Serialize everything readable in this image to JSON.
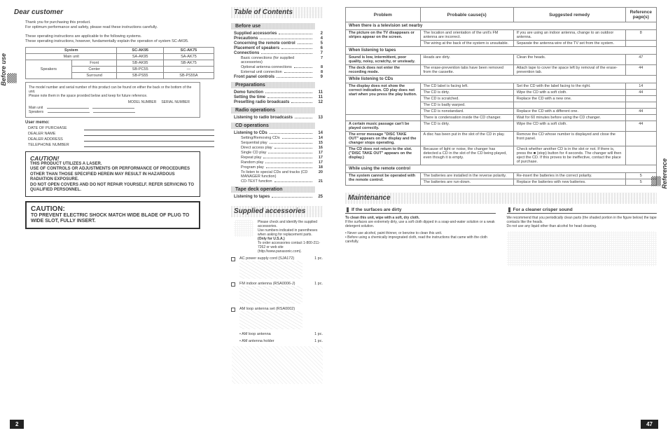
{
  "left_tab_label": "Before use",
  "right_tab_label": "Reference",
  "page_left_num": "2",
  "page_right_num": "47",
  "dear": {
    "title": "Dear customer",
    "p1": "Thank you for purchasing this product.",
    "p2": "For optimum performance and safety, please read these instructions carefully.",
    "p3": "These operating instructions are applicable to the following systems.",
    "p4": "These operating instructions, however, fundamentally explain the operation of system SC-AK95."
  },
  "sys_table": {
    "headers": [
      "System",
      "SC-AK95",
      "SC-AK75"
    ],
    "rows": [
      [
        "Main unit",
        "SA-AK95",
        "SA-AK75"
      ],
      [
        "Front",
        "SB-AK95",
        "SB-AK75"
      ],
      [
        "Center",
        "SB-PC55",
        "—"
      ],
      [
        "Surround",
        "SB-PS55",
        "SB-PS55A"
      ]
    ],
    "speakers_label": "Speakers"
  },
  "model_box": {
    "p1": "The model number and serial number of this product can be found on either the back or the bottom of the unit.",
    "p2": "Please note them in the space provided below and keep for future reference.",
    "model_label": "MODEL NUMBER",
    "serial_label": "SERIAL NUMBER",
    "rows": [
      "Main unit",
      "Speakers"
    ]
  },
  "user_memo_label": "User memo:",
  "memo_rows": [
    "DATE OF PURCHASE",
    "DEALER NAME",
    "DEALER ADDRESS",
    "TELEPHONE NUMBER"
  ],
  "caution1": {
    "title": "CAUTION!",
    "lines": [
      "THIS PRODUCT UTILIZES A LASER.",
      "USE OF CONTROLS OR ADJUSTMENTS OR PERFORMANCE OF PROCEDURES OTHER THAN THOSE SPECIFIED HEREIN MAY RESULT IN HAZARDOUS RADIATION EXPOSURE.",
      "DO NOT OPEN COVERS AND DO NOT REPAIR YOURSELF. REFER SERVICING TO QUALIFIED PERSONNEL."
    ]
  },
  "caution2": {
    "title": "CAUTION:",
    "text": "TO PREVENT ELECTRIC SHOCK MATCH WIDE BLADE OF PLUG TO WIDE SLOT, FULLY INSERT."
  },
  "toc": {
    "title": "Table of Contents",
    "sections": [
      {
        "hdr": "Before use",
        "items": [
          {
            "label": "Supplied accessories",
            "pg": "2"
          },
          {
            "label": "Precautions",
            "pg": "4"
          },
          {
            "label": "Concerning the remote control",
            "pg": "5"
          },
          {
            "label": "Placement of speakers",
            "pg": "6"
          },
          {
            "label": "Connections",
            "pg": "7"
          },
          {
            "label": "Basic connections (for supplied accessories)",
            "pg": "7",
            "sub": true
          },
          {
            "label": "Optional antenna connections",
            "pg": "8",
            "sub": true
          },
          {
            "label": "External unit connection",
            "pg": "8",
            "sub": true
          },
          {
            "label": "Front panel controls",
            "pg": "9"
          }
        ]
      },
      {
        "hdr": "Preparations",
        "items": [
          {
            "label": "Demo function",
            "pg": "11"
          },
          {
            "label": "Setting the time",
            "pg": "11"
          },
          {
            "label": "Presetting radio broadcasts",
            "pg": "12"
          }
        ]
      },
      {
        "hdr": "Radio operations",
        "items": [
          {
            "label": "Listening to radio broadcasts",
            "pg": "13"
          }
        ]
      },
      {
        "hdr": "CD operations",
        "items": [
          {
            "label": "Listening to CDs",
            "pg": "14"
          },
          {
            "label": "Setting/Removing CDs",
            "pg": "14",
            "sub": true
          },
          {
            "label": "Sequential play",
            "pg": "15",
            "sub": true
          },
          {
            "label": "Direct access play",
            "pg": "16",
            "sub": true
          },
          {
            "label": "Single CD play",
            "pg": "17",
            "sub": true
          },
          {
            "label": "Repeat play",
            "pg": "17",
            "sub": true
          },
          {
            "label": "Random play",
            "pg": "17",
            "sub": true
          },
          {
            "label": "Program play",
            "pg": "18",
            "sub": true
          },
          {
            "label": "To listen to special CDs and tracks (CD MANAGER function)",
            "pg": "20",
            "sub": true
          },
          {
            "label": "CD-TEXT function",
            "pg": "21",
            "sub": true
          }
        ]
      },
      {
        "hdr": "Tape deck operation",
        "items": [
          {
            "label": "Listening to tapes",
            "pg": "25"
          }
        ]
      }
    ]
  },
  "supplied": {
    "title": "Supplied accessories",
    "intro1": "Please check and identify the supplied accessories.",
    "intro2": "Use numbers indicated in parentheses when asking for replacement parts.",
    "usa": "(Only for U.S.A.)",
    "intro3": "To order accessories contact 1-800-211-7262 or web site (http://www.panasonic.com).",
    "items": [
      {
        "label": "AC power supply cord",
        "code": "(SJA172)",
        "qty": "1 pc."
      },
      {
        "label": "FM indoor antenna (RSA0006-J)",
        "code": "",
        "qty": "1 pc."
      },
      {
        "label": "AM loop antenna set (RSA0002)",
        "code": "",
        "qty": ""
      },
      {
        "label": "• AM loop antenna",
        "code": "",
        "qty": "1 pc.",
        "sub": true
      },
      {
        "label": "• AM antenna holder",
        "code": "",
        "qty": "1 pc.",
        "sub": true
      }
    ]
  },
  "trouble": {
    "headers": [
      "Problem",
      "Probable cause(s)",
      "Suggested remedy",
      "Reference page(s)"
    ],
    "sections": [
      {
        "hdr": "When there is a television set nearby",
        "rows": [
          {
            "problem_rs": 2,
            "problem": "The picture on the TV disappears or stripes appear on the screen.",
            "cause": "The location and orientation of the unit's FM antenna are incorrect.",
            "remedy": "If you are using an indoor antenna, change to an outdoor antenna.",
            "pg": "8"
          },
          {
            "cause": "The wiring at the back of the system is unsuitable.",
            "remedy": "Separate the antenna wire of the TV set from the system.",
            "pg": ""
          }
        ]
      },
      {
        "hdr": "When listening to tapes",
        "rows": [
          {
            "problem": "Sound is low, intermittent, poor quality, noisy, scratchy, or unsteady.",
            "cause": "Heads are dirty.",
            "remedy": "Clean the heads.",
            "pg": "47"
          },
          {
            "problem": "The deck does not enter the recording mode.",
            "cause": "The erase-prevention tabs have been removed from the cassette.",
            "remedy": "Attach tape to cover the space left by removal of the erase-prevention tab.",
            "pg": "44"
          }
        ]
      },
      {
        "hdr": "While listening to CDs",
        "rows": [
          {
            "problem_rs": 5,
            "problem": "The display does not show the correct indication. CD play does not start when you press the play button.",
            "cause": "The CD label is facing left.",
            "remedy": "Set the CD with the label facing to the right.",
            "pg": "14"
          },
          {
            "cause": "The CD is dirty.",
            "remedy": "Wipe the CD with a soft cloth.",
            "pg": "44"
          },
          {
            "cause": "The CD is scratched.",
            "remedy": "Replace the CD with a new one.",
            "pg": ""
          },
          {
            "cause": "The CD is badly warped.",
            "remedy": "",
            "pg": ""
          },
          {
            "cause": "The CD is nonstandard.",
            "remedy": "Replace the CD with a different one.",
            "pg": "44"
          },
          {
            "problem": "",
            "cause": "There is condensation inside the CD changer.",
            "remedy": "Wait for 60 minutes before using the CD changer.",
            "pg": ""
          },
          {
            "problem": "A certain music passage can't be played correctly.",
            "cause": "The CD is dirty.",
            "remedy": "Wipe the CD with a soft cloth.",
            "pg": "44"
          },
          {
            "problem": "The error message \"DISC TAKE OUT\" appears on the display and the changer stops operating.",
            "cause": "A disc has been put in the slot of the CD in play.",
            "remedy": "Remove the CD whose number is displayed and close the front panel.",
            "pg": ""
          },
          {
            "problem": "The CD does not return to the slot. (\"DISC TAKE OUT\" appears on the display.)",
            "cause": "Because of light or noise, the changer has detected a CD in the slot of the CD being played, even though it is empty.",
            "remedy": "Check whether another CD is in the slot or not. If there is, press the ■ (stop) button for 4 seconds. The changer will then eject the CD. If this proves to be ineffective, contact the place of purchase.",
            "pg": ""
          }
        ]
      },
      {
        "hdr": "While using the remote control",
        "rows": [
          {
            "problem_rs": 2,
            "problem": "The system cannot be operated with the remote control.",
            "cause": "The batteries are installed in the reverse polarity.",
            "remedy": "Re-insert the batteries in the correct polarity.",
            "pg": "5"
          },
          {
            "cause": "The batteries are run-down.",
            "remedy": "Replace the batteries with new batteries.",
            "pg": "5"
          }
        ]
      }
    ]
  },
  "maint": {
    "title": "Maintenance",
    "left_title": "If the surfaces are dirty",
    "left_bold": "To clean this unit, wipe with a soft, dry cloth.",
    "left_p1": "If the surfaces are extremely dirty, use a soft cloth dipped in a soap-and-water solution or a weak detergent solution.",
    "left_b1": "• Never use alcohol, paint thinner, or benzine to clean this unit.",
    "left_b2": "• Before using a chemically impregnated cloth, read the instructions that came with the cloth carefully.",
    "right_title": "For a cleaner crisper sound",
    "right_p1": "We recommend that you periodically clean parts (the shaded portion in the figure below) the tape contacts like the heads.",
    "right_p2": "Do not use any liquid other than alcohol for head cleaning."
  }
}
